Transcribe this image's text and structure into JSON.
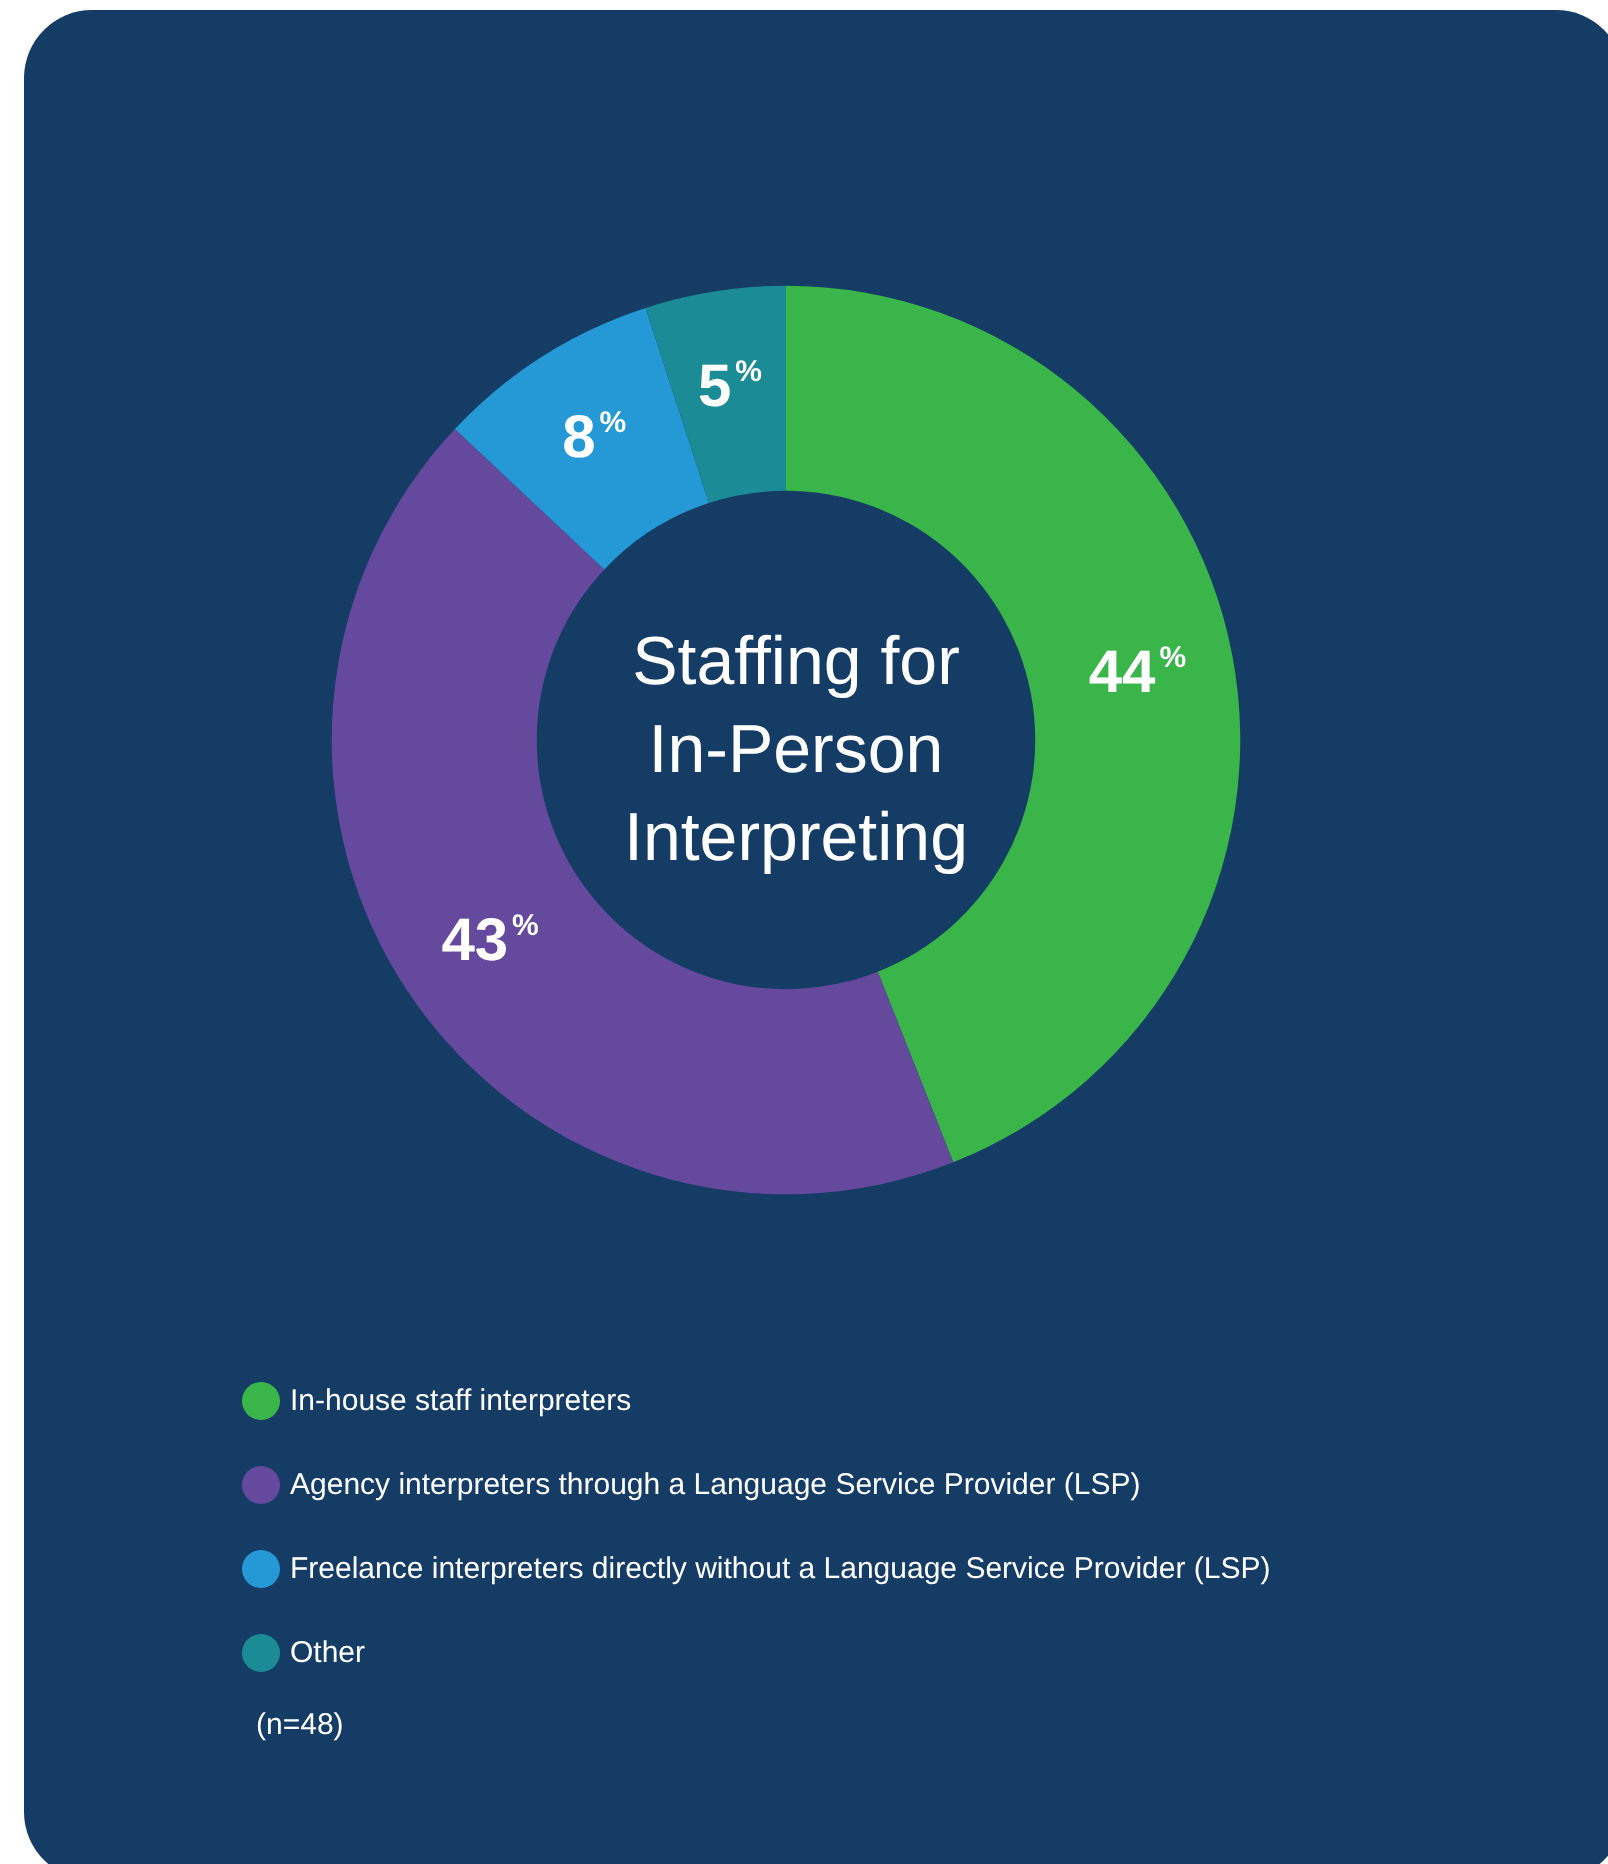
{
  "chart_data": {
    "type": "donut",
    "title": "Staffing for\nIn-Person\nInterpreting",
    "categories": [
      "In-house staff interpreters",
      "Agency interpreters through a Language Service Provider (LSP)",
      "Freelance interpreters directly without a Language Service Provider (LSP)",
      "Other"
    ],
    "values": [
      44,
      43,
      8,
      5
    ],
    "colors": [
      "#39b54a",
      "#65499d",
      "#2499d6",
      "#1b8c96"
    ],
    "value_labels": [
      "44%",
      "43%",
      "8%",
      "5%"
    ],
    "legend": "bottom left",
    "annotations": [
      "(n=48)"
    ]
  }
}
